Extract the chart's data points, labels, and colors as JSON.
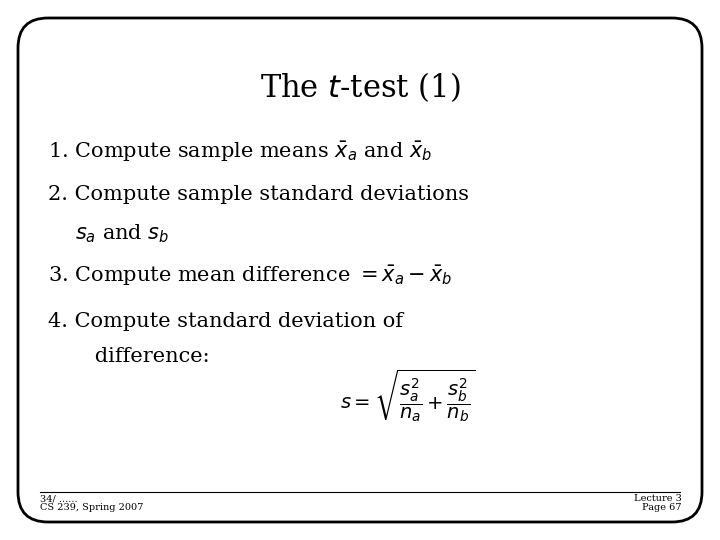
{
  "title": "The $t$-test (1)",
  "title_fontsize": 22,
  "body_fontsize": 15,
  "small_fontsize": 7,
  "background_color": "#ffffff",
  "border_color": "#000000",
  "text_color": "#000000",
  "footer_left_top": "34/ ......",
  "footer_left": "CS 239, Spring 2007",
  "footer_right_line1": "Lecture 3",
  "footer_right_line2": "Page 67",
  "line1": "1. Compute sample means $\\bar{x}_a$ and $\\bar{x}_b$",
  "line2": "2. Compute sample standard deviations",
  "line2b": "$s_a$ and $s_b$",
  "line3": "3. Compute mean difference $= \\bar{x}_a - \\bar{x}_b$",
  "line4": "4. Compute standard deviation of",
  "line4b": "   difference:",
  "formula": "$s = \\sqrt{\\dfrac{s_a^2}{n_a} + \\dfrac{s_b^2}{n_b}}$",
  "formula_fontsize": 14
}
